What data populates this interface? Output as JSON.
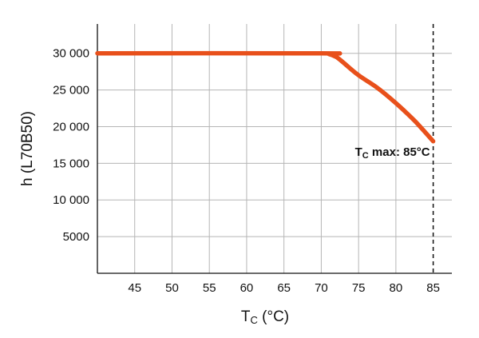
{
  "chart_data": {
    "type": "line",
    "title": "",
    "xlabel": {
      "main": "T",
      "sub": "C",
      "suffix": " (°C)"
    },
    "ylabel": "h (L70B50)",
    "xlim": [
      40,
      87.5
    ],
    "ylim": [
      0,
      34000
    ],
    "xticks": [
      45,
      50,
      55,
      60,
      65,
      70,
      75,
      80,
      85
    ],
    "yticks": [
      5000,
      10000,
      15000,
      20000,
      25000,
      30000
    ],
    "ytick_labels": [
      "5000",
      "10 000",
      "15 000",
      "20 000",
      "25 000",
      "30 000"
    ],
    "xgrid": [
      45,
      50,
      55,
      60,
      65,
      70,
      75,
      80
    ],
    "ygrid": [
      5000,
      10000,
      15000,
      20000,
      25000,
      30000
    ],
    "grid": true,
    "series": [
      {
        "color": "#e8501b",
        "x": [
          40,
          70,
          71,
          72,
          73,
          75,
          77.5,
          80,
          82.5,
          85
        ],
        "y": [
          30000,
          30000,
          29900,
          29500,
          28700,
          27000,
          25300,
          23200,
          20800,
          18000
        ]
      }
    ],
    "vline": {
      "x": 85,
      "style": "dashed"
    },
    "annotation": {
      "main": "T",
      "sub": "C",
      "text": " max: 85°C",
      "x": 85,
      "y": 18000
    }
  }
}
